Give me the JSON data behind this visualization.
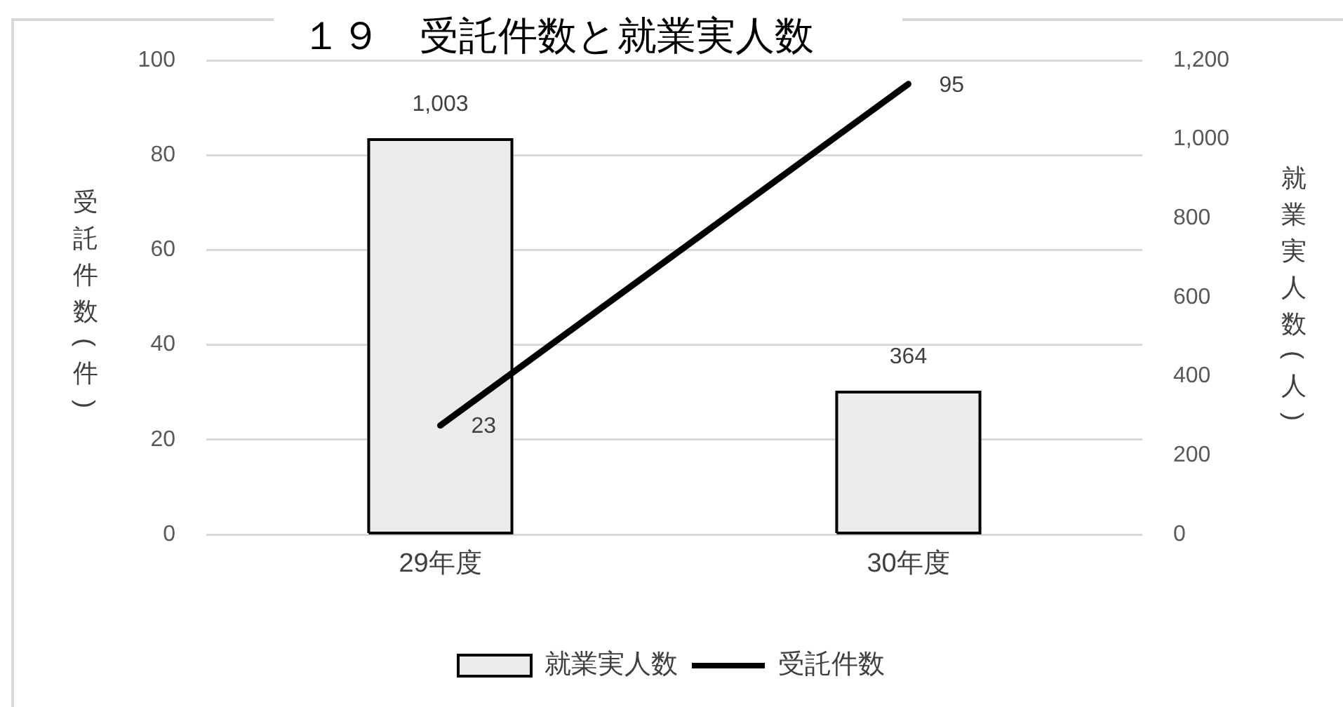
{
  "chart_data": {
    "type": "bar",
    "title": "１９　受託件数と就業実人数",
    "ylabel": "受託件数(件)",
    "y2label": "就業実人数(人)",
    "categories": [
      "29年度",
      "30年度"
    ],
    "series": [
      {
        "name": "就業実人数",
        "axis": "y2",
        "color": "#ebebeb",
        "values": [
          1003,
          364
        ],
        "value_labels": [
          "1,003",
          "364"
        ]
      },
      {
        "name": "受託件数",
        "type": "line",
        "color": "#000000",
        "values": [
          23,
          95
        ],
        "value_labels": [
          "23",
          "95"
        ]
      }
    ],
    "ylim": [
      0,
      100
    ],
    "yticks": [
      0,
      20,
      40,
      60,
      80,
      100
    ],
    "y2lim": [
      0,
      1200
    ],
    "y2ticks": [
      0,
      200,
      400,
      600,
      800,
      {
        "value": 1000,
        "label": "1,000"
      },
      {
        "value": 1200,
        "label": "1,200"
      }
    ],
    "grid": "y",
    "legend": "bottom"
  }
}
